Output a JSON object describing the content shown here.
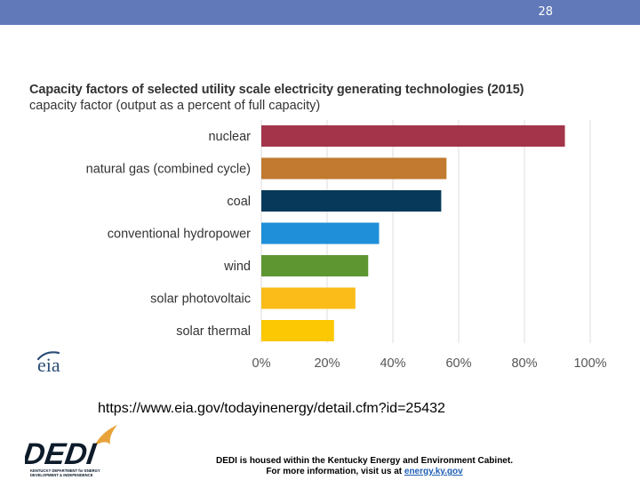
{
  "page": {
    "number": "28"
  },
  "colors": {
    "header_bar": "#6179b8",
    "grid": "#dddddd",
    "axis_text": "#555555",
    "label_text": "#333333"
  },
  "logos": {
    "eia": {
      "text": "eia",
      "icon": "eia-logo-icon",
      "color": "#2b4d78"
    },
    "dedi": {
      "text": "DEDI",
      "tagline_1": "KENTUCKY DEPARTMENT for ENERGY",
      "tagline_2": "DEVELOPMENT & INDEPENDENCE",
      "icon": "dedi-logo-icon",
      "color": "#0d1b2a",
      "accent": "#e8a33a"
    }
  },
  "chart_data": {
    "type": "bar",
    "orientation": "horizontal",
    "title": "Capacity factors of selected utility scale electricity generating technologies (2015)",
    "subtitle": "capacity factor (output as a percent of full capacity)",
    "categories": [
      "nuclear",
      "natural gas (combined cycle)",
      "coal",
      "conventional hydropower",
      "wind",
      "solar photovoltaic",
      "solar thermal"
    ],
    "values": [
      92.3,
      56.3,
      54.7,
      35.8,
      32.5,
      28.6,
      22.1
    ],
    "colors": [
      "#a3344a",
      "#c17a2f",
      "#073a5a",
      "#1e8fd8",
      "#5e9732",
      "#fbbc19",
      "#fcc804"
    ],
    "xlim": [
      0,
      100
    ],
    "xticks": [
      0,
      20,
      40,
      60,
      80,
      100
    ],
    "xtick_labels": [
      "0%",
      "20%",
      "40%",
      "60%",
      "80%",
      "100%"
    ],
    "xlabel": "",
    "ylabel": "",
    "grid": true,
    "legend": "none"
  },
  "source": {
    "url": "https://www.eia.gov/todayinenergy/detail.cfm?id=25432"
  },
  "footer": {
    "line1": "DEDI is housed within the Kentucky Energy and Environment Cabinet.",
    "line2_prefix": "For more information, visit us at ",
    "line2_link": "energy.ky.gov"
  }
}
